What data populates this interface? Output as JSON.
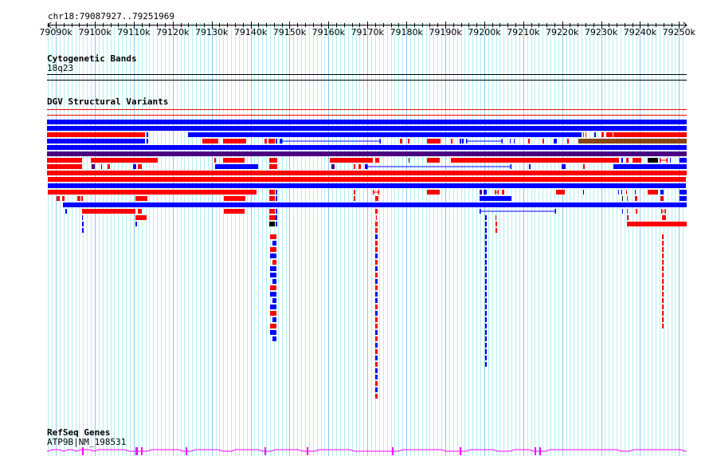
{
  "ruler": {
    "position": "chr18:79087927..79251969",
    "start": 79087927,
    "end": 79251969,
    "ticks": [
      "79090k",
      "79100k",
      "79110k",
      "79120k",
      "79130k",
      "79140k",
      "79150k",
      "79160k",
      "79170k",
      "79180k",
      "79190k",
      "79200k",
      "79210k",
      "79220k",
      "79230k",
      "79240k",
      "79250k"
    ]
  },
  "tracks": {
    "cytoband": {
      "title": "Cytogenetic Bands",
      "band": "18q23"
    },
    "dgv": {
      "title": "DGV Structural Variants"
    },
    "refseq": {
      "title": "RefSeq Genes",
      "gene": "ATP9B|NM_198531"
    }
  },
  "colors": {
    "gain": "#ff0000",
    "loss": "#0000ff",
    "both": "#4b0082",
    "inversion": "#8b4513",
    "other": "#000000",
    "gene": "#ff00ff",
    "grid_minor": "#b4eef0",
    "grid_major": "#8cc4ec"
  }
}
